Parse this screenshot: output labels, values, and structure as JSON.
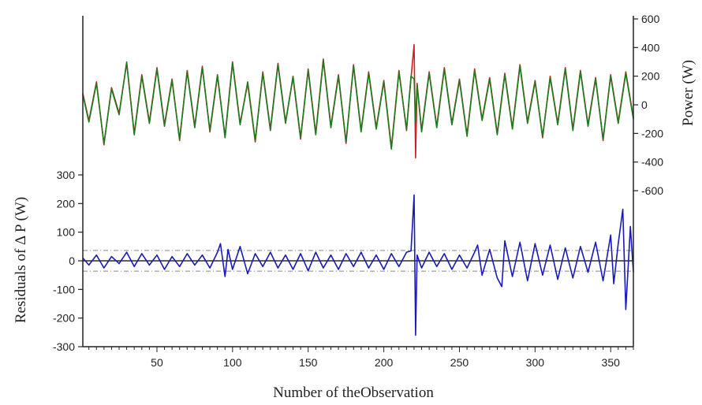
{
  "chart_data": {
    "type": "line",
    "xlabel": "Number of theObservation",
    "x_range": [
      1,
      365
    ],
    "x_ticks": [
      50,
      100,
      150,
      200,
      250,
      300,
      350
    ],
    "left_axis": {
      "label": "Residuals of Δ P (W)",
      "range": [
        -300,
        300
      ],
      "ticks": [
        -300,
        -200,
        -100,
        0,
        100,
        200,
        300
      ]
    },
    "right_axis": {
      "label": "Power (W)",
      "range": [
        -600,
        600
      ],
      "ticks": [
        -600,
        -400,
        -200,
        0,
        200,
        400,
        600
      ]
    },
    "control_limits": [
      36,
      -36
    ],
    "colors": {
      "actual_power": "#cc2222",
      "predicted_power": "#1e7a1e",
      "residuals": "#1a1ab8",
      "control_limit": "#888888",
      "axis": "#222222"
    },
    "series": [
      {
        "role": "actual_power",
        "axis": "right",
        "x": [
          1,
          5,
          10,
          15,
          20,
          25,
          30,
          35,
          40,
          45,
          50,
          55,
          60,
          65,
          70,
          75,
          80,
          85,
          90,
          95,
          100,
          105,
          110,
          115,
          120,
          125,
          130,
          135,
          140,
          145,
          150,
          155,
          160,
          165,
          170,
          175,
          180,
          185,
          190,
          195,
          200,
          205,
          210,
          215,
          218,
          220,
          221,
          222,
          225,
          230,
          235,
          240,
          245,
          250,
          255,
          260,
          265,
          270,
          275,
          280,
          285,
          290,
          295,
          300,
          305,
          310,
          315,
          320,
          325,
          330,
          335,
          340,
          345,
          350,
          355,
          360,
          365
        ],
        "values": [
          80,
          -110,
          160,
          -280,
          120,
          -60,
          290,
          -200,
          210,
          -120,
          260,
          -140,
          180,
          -250,
          240,
          -150,
          270,
          -190,
          200,
          -220,
          300,
          -130,
          150,
          -260,
          230,
          -170,
          290,
          -120,
          190,
          -240,
          250,
          -200,
          320,
          -150,
          210,
          -270,
          280,
          -180,
          230,
          -160,
          170,
          -300,
          240,
          -180,
          190,
          420,
          -370,
          150,
          -180,
          230,
          -150,
          260,
          -130,
          180,
          -210,
          250,
          -100,
          190,
          -200,
          220,
          -160,
          280,
          -120,
          170,
          -230,
          200,
          -130,
          260,
          -170,
          240,
          -140,
          190,
          -250,
          210,
          -120,
          230,
          -90
        ]
      },
      {
        "role": "predicted_power",
        "axis": "right",
        "x": [
          1,
          5,
          10,
          15,
          20,
          25,
          30,
          35,
          40,
          45,
          50,
          55,
          60,
          65,
          70,
          75,
          80,
          85,
          90,
          95,
          100,
          105,
          110,
          115,
          120,
          125,
          130,
          135,
          140,
          145,
          150,
          155,
          160,
          165,
          170,
          175,
          180,
          185,
          190,
          195,
          200,
          205,
          210,
          215,
          218,
          220,
          221,
          222,
          225,
          230,
          235,
          240,
          245,
          250,
          255,
          260,
          265,
          270,
          275,
          280,
          285,
          290,
          295,
          300,
          305,
          310,
          315,
          320,
          325,
          330,
          335,
          340,
          345,
          350,
          355,
          360,
          365
        ],
        "values": [
          70,
          -120,
          150,
          -270,
          110,
          -70,
          300,
          -210,
          200,
          -130,
          250,
          -150,
          170,
          -240,
          230,
          -160,
          260,
          -180,
          210,
          -230,
          290,
          -140,
          160,
          -250,
          220,
          -180,
          280,
          -130,
          200,
          -230,
          240,
          -210,
          310,
          -160,
          200,
          -260,
          270,
          -190,
          220,
          -170,
          160,
          -310,
          230,
          -170,
          200,
          180,
          -120,
          140,
          -190,
          220,
          -160,
          250,
          -140,
          170,
          -220,
          240,
          -110,
          180,
          -210,
          210,
          -170,
          270,
          -130,
          160,
          -220,
          190,
          -140,
          250,
          -180,
          230,
          -150,
          180,
          -240,
          200,
          -130,
          220,
          -100
        ]
      },
      {
        "role": "residuals",
        "axis": "left",
        "x": [
          1,
          5,
          10,
          15,
          20,
          25,
          30,
          35,
          40,
          45,
          50,
          55,
          60,
          65,
          70,
          75,
          80,
          85,
          90,
          92,
          95,
          97,
          100,
          105,
          110,
          115,
          120,
          125,
          130,
          135,
          140,
          145,
          150,
          155,
          160,
          165,
          170,
          175,
          180,
          185,
          190,
          195,
          200,
          205,
          210,
          215,
          218,
          220,
          221,
          222,
          225,
          230,
          235,
          240,
          245,
          250,
          255,
          260,
          262,
          265,
          270,
          275,
          278,
          280,
          285,
          290,
          295,
          300,
          305,
          310,
          315,
          320,
          325,
          330,
          335,
          340,
          345,
          350,
          352,
          355,
          358,
          360,
          363,
          365
        ],
        "values": [
          10,
          -15,
          20,
          -25,
          15,
          -10,
          30,
          -20,
          25,
          -15,
          20,
          -30,
          15,
          -20,
          25,
          -15,
          20,
          -25,
          30,
          60,
          -55,
          40,
          -30,
          50,
          -45,
          25,
          -20,
          30,
          -25,
          20,
          -30,
          25,
          -35,
          30,
          -25,
          20,
          -30,
          25,
          -20,
          30,
          -25,
          20,
          -30,
          25,
          -20,
          30,
          35,
          230,
          -260,
          20,
          -25,
          30,
          -20,
          25,
          -30,
          20,
          -25,
          30,
          55,
          -50,
          40,
          -60,
          -90,
          70,
          -55,
          65,
          -70,
          60,
          -50,
          55,
          -65,
          45,
          -60,
          50,
          -40,
          65,
          -70,
          90,
          -80,
          60,
          180,
          -170,
          120,
          -40
        ]
      }
    ]
  }
}
